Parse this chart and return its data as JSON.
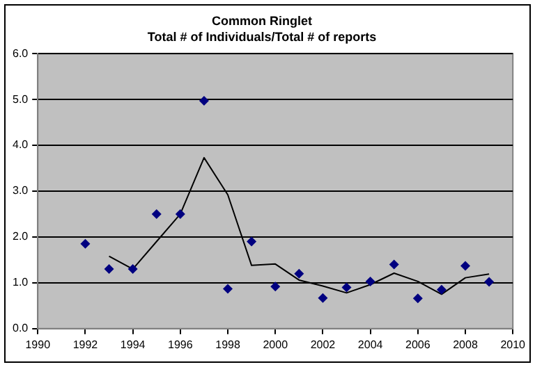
{
  "chart_data": {
    "type": "scatter",
    "title": "Common Ringlet",
    "subtitle": "Total # of Individuals/Total # of reports",
    "x": [
      1992,
      1993,
      1994,
      1995,
      1996,
      1997,
      1998,
      1999,
      2000,
      2001,
      2002,
      2003,
      2004,
      2005,
      2006,
      2007,
      2008,
      2009
    ],
    "series": [
      {
        "color": "#000080",
        "marker": "diamond",
        "values": [
          1.85,
          1.3,
          1.3,
          2.5,
          2.5,
          4.97,
          0.87,
          1.9,
          0.92,
          1.2,
          0.67,
          0.9,
          1.03,
          1.4,
          0.66,
          0.85,
          1.37,
          1.02
        ]
      },
      {
        "type": "line",
        "color": "#000000",
        "marker": "none",
        "line_style": "solid",
        "x": [
          1993,
          1994,
          1995,
          1996,
          1997,
          1998,
          1999,
          2000,
          2001,
          2002,
          2003,
          2004,
          2005,
          2006,
          2007,
          2008,
          2009
        ],
        "values": [
          1.58,
          1.3,
          1.9,
          2.5,
          3.73,
          2.92,
          1.38,
          1.41,
          1.06,
          0.93,
          0.78,
          0.96,
          1.21,
          1.03,
          0.75,
          1.11,
          1.19
        ]
      }
    ],
    "xlim": [
      1990,
      2010
    ],
    "xticks": [
      1990,
      1992,
      1994,
      1996,
      1998,
      2000,
      2002,
      2004,
      2006,
      2008,
      2010
    ],
    "ylim": [
      0,
      6
    ],
    "yticks": [
      {
        "value": 0,
        "label": "0.0"
      },
      {
        "value": 1,
        "label": "1.0"
      },
      {
        "value": 2,
        "label": "2.0"
      },
      {
        "value": 3,
        "label": "3.0"
      },
      {
        "value": 4,
        "label": "4.0"
      },
      {
        "value": 5,
        "label": "5.0"
      },
      {
        "value": 6,
        "label": "6.0"
      }
    ],
    "grid": "y",
    "legend": false
  }
}
